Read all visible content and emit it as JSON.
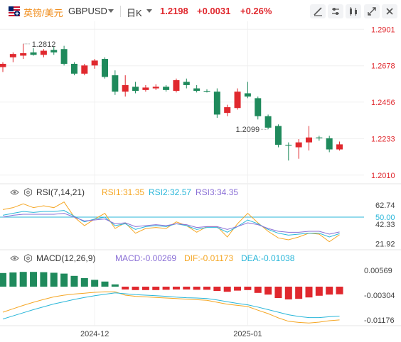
{
  "header": {
    "pair_cn": "英镑/美元",
    "symbol": "GBPUSD",
    "period": "日K",
    "price": "1.2198",
    "change": "+0.0031",
    "change_pct": "+0.26%"
  },
  "rsi_header": {
    "name": "RSI(7,14,21)",
    "rsi1": "RSI1:31.35",
    "rsi2": "RSI2:32.57",
    "rsi3": "RSI3:34.35"
  },
  "macd_header": {
    "name": "MACD(12,26,9)",
    "macd": "MACD:-0.00269",
    "dif": "DIF:-0.01173",
    "dea": "DEA:-0.01038"
  },
  "colors": {
    "up": "#e0282e",
    "down": "#1f8a5c",
    "rsi1": "#f5a623",
    "rsi2": "#29b6d9",
    "rsi3": "#8a6fd6",
    "level50": "#29b6d9",
    "dif": "#f5a623",
    "dea": "#29b6d9",
    "header_up": "#e0282e",
    "accent": "#f08c1a"
  },
  "chart_data": [
    {
      "type": "candlestick",
      "title": "GBPUSD 日K",
      "ylim": [
        1.197,
        1.295
      ],
      "y_ticks": [
        "1.2901",
        "1.2678",
        "1.2456",
        "1.2233",
        "1.2010"
      ],
      "y_tick_values": [
        1.2901,
        1.2678,
        1.2456,
        1.2233,
        1.201
      ],
      "x_tick_labels": [
        "2024-12",
        "2025-01"
      ],
      "x_tick_index": [
        9,
        24
      ],
      "annotations": {
        "high_label": "1.2812",
        "high_index": 2,
        "low_label": "1.2099",
        "low_index": 26
      },
      "candles": [
        {
          "o": 1.267,
          "h": 1.27,
          "l": 1.264,
          "c": 1.269
        },
        {
          "o": 1.273,
          "h": 1.276,
          "l": 1.27,
          "c": 1.275
        },
        {
          "o": 1.274,
          "h": 1.2812,
          "l": 1.272,
          "c": 1.2755
        },
        {
          "o": 1.276,
          "h": 1.2785,
          "l": 1.274,
          "c": 1.2745
        },
        {
          "o": 1.2745,
          "h": 1.278,
          "l": 1.273,
          "c": 1.277
        },
        {
          "o": 1.2775,
          "h": 1.2795,
          "l": 1.2745,
          "c": 1.276
        },
        {
          "o": 1.278,
          "h": 1.28,
          "l": 1.268,
          "c": 1.269
        },
        {
          "o": 1.269,
          "h": 1.27,
          "l": 1.262,
          "c": 1.263
        },
        {
          "o": 1.263,
          "h": 1.269,
          "l": 1.262,
          "c": 1.268
        },
        {
          "o": 1.268,
          "h": 1.272,
          "l": 1.266,
          "c": 1.271
        },
        {
          "o": 1.272,
          "h": 1.273,
          "l": 1.26,
          "c": 1.261
        },
        {
          "o": 1.262,
          "h": 1.265,
          "l": 1.25,
          "c": 1.252
        },
        {
          "o": 1.252,
          "h": 1.262,
          "l": 1.249,
          "c": 1.256
        },
        {
          "o": 1.255,
          "h": 1.258,
          "l": 1.251,
          "c": 1.2525
        },
        {
          "o": 1.253,
          "h": 1.256,
          "l": 1.252,
          "c": 1.2545
        },
        {
          "o": 1.254,
          "h": 1.2565,
          "l": 1.253,
          "c": 1.255
        },
        {
          "o": 1.255,
          "h": 1.256,
          "l": 1.252,
          "c": 1.253
        },
        {
          "o": 1.2525,
          "h": 1.26,
          "l": 1.2515,
          "c": 1.259
        },
        {
          "o": 1.258,
          "h": 1.26,
          "l": 1.254,
          "c": 1.256
        },
        {
          "o": 1.254,
          "h": 1.256,
          "l": 1.2515,
          "c": 1.2525
        },
        {
          "o": 1.2525,
          "h": 1.2535,
          "l": 1.2515,
          "c": 1.252
        },
        {
          "o": 1.252,
          "h": 1.254,
          "l": 1.236,
          "c": 1.238
        },
        {
          "o": 1.239,
          "h": 1.244,
          "l": 1.237,
          "c": 1.2425
        },
        {
          "o": 1.242,
          "h": 1.254,
          "l": 1.241,
          "c": 1.252
        },
        {
          "o": 1.251,
          "h": 1.258,
          "l": 1.248,
          "c": 1.249
        },
        {
          "o": 1.248,
          "h": 1.249,
          "l": 1.235,
          "c": 1.237
        },
        {
          "o": 1.237,
          "h": 1.238,
          "l": 1.229,
          "c": 1.23
        },
        {
          "o": 1.231,
          "h": 1.232,
          "l": 1.218,
          "c": 1.2195
        },
        {
          "o": 1.2195,
          "h": 1.221,
          "l": 1.2099,
          "c": 1.219
        },
        {
          "o": 1.218,
          "h": 1.223,
          "l": 1.211,
          "c": 1.221
        },
        {
          "o": 1.221,
          "h": 1.231,
          "l": 1.216,
          "c": 1.224
        },
        {
          "o": 1.224,
          "h": 1.225,
          "l": 1.222,
          "c": 1.2235
        },
        {
          "o": 1.2235,
          "h": 1.225,
          "l": 1.215,
          "c": 1.2167
        },
        {
          "o": 1.2167,
          "h": 1.2215,
          "l": 1.216,
          "c": 1.2198
        }
      ]
    },
    {
      "type": "line",
      "title": "RSI(7,14,21)",
      "ylim": [
        17,
        68
      ],
      "y_ticks": [
        "62.74",
        "50.00",
        "42.33",
        "21.92"
      ],
      "y_tick_values": [
        62.74,
        50.0,
        42.33,
        21.92
      ],
      "reference_line": 50,
      "series": [
        {
          "name": "RSI1",
          "values": [
            58,
            60,
            64,
            60,
            62,
            60,
            66,
            50,
            41,
            48,
            54,
            38,
            44,
            33,
            38,
            39,
            38,
            45,
            41,
            34,
            40,
            40,
            29,
            43,
            54,
            44,
            35,
            28,
            26,
            29,
            33,
            32,
            24,
            31.35
          ]
        },
        {
          "name": "RSI2",
          "values": [
            52,
            54,
            56,
            55,
            56,
            56,
            57,
            51,
            45,
            48,
            50,
            41,
            43,
            37,
            40,
            41,
            40,
            43,
            41,
            37,
            39,
            39,
            34,
            40,
            47,
            43,
            37,
            33,
            31,
            32,
            33,
            33,
            29,
            32.57
          ]
        },
        {
          "name": "RSI3",
          "values": [
            50,
            52,
            53,
            53,
            53,
            53,
            54,
            50,
            46,
            47,
            48,
            43,
            44,
            40,
            41,
            42,
            41,
            43,
            42,
            39,
            40,
            40,
            37,
            40,
            44,
            42,
            38,
            35,
            34,
            34,
            35,
            35,
            32,
            34.35
          ]
        }
      ]
    },
    {
      "type": "bar+line",
      "title": "MACD(12,26,9)",
      "ylim": [
        -0.0135,
        0.0075
      ],
      "y_ticks": [
        "0.00569",
        "-0.00304",
        "-0.01176"
      ],
      "y_tick_values": [
        0.00569,
        -0.00304,
        -0.01176
      ],
      "series": [
        {
          "name": "MACD",
          "values": [
            0.0048,
            0.005,
            0.0052,
            0.0052,
            0.0051,
            0.0049,
            0.0046,
            0.0038,
            0.003,
            0.0024,
            0.0018,
            0.0008,
            -0.001,
            -0.0012,
            -0.0012,
            -0.0012,
            -0.0011,
            -0.001,
            -0.001,
            -0.0011,
            -0.0011,
            -0.0015,
            -0.0018,
            -0.0014,
            -0.0012,
            -0.0022,
            -0.0028,
            -0.004,
            -0.0045,
            -0.0043,
            -0.0038,
            -0.0032,
            -0.0028,
            -0.00269
          ]
        },
        {
          "name": "DIF",
          "values": [
            -0.009,
            -0.0078,
            -0.0066,
            -0.0055,
            -0.0045,
            -0.0036,
            -0.003,
            -0.0026,
            -0.0023,
            -0.002,
            -0.0018,
            -0.0018,
            -0.003,
            -0.0034,
            -0.0036,
            -0.0038,
            -0.004,
            -0.0042,
            -0.0044,
            -0.0046,
            -0.0048,
            -0.0055,
            -0.0062,
            -0.0066,
            -0.007,
            -0.0083,
            -0.0095,
            -0.011,
            -0.0122,
            -0.0126,
            -0.0128,
            -0.0125,
            -0.012,
            -0.01173
          ]
        },
        {
          "name": "DEA",
          "values": [
            -0.0114,
            -0.0103,
            -0.0092,
            -0.0081,
            -0.0071,
            -0.0061,
            -0.0053,
            -0.0045,
            -0.0038,
            -0.0032,
            -0.0027,
            -0.0022,
            -0.0025,
            -0.0028,
            -0.003,
            -0.0032,
            -0.0034,
            -0.0037,
            -0.0039,
            -0.004,
            -0.0042,
            -0.0047,
            -0.0053,
            -0.0059,
            -0.0064,
            -0.0072,
            -0.0081,
            -0.009,
            -0.0099,
            -0.0105,
            -0.0109,
            -0.0109,
            -0.0106,
            -0.01038
          ]
        }
      ]
    }
  ]
}
